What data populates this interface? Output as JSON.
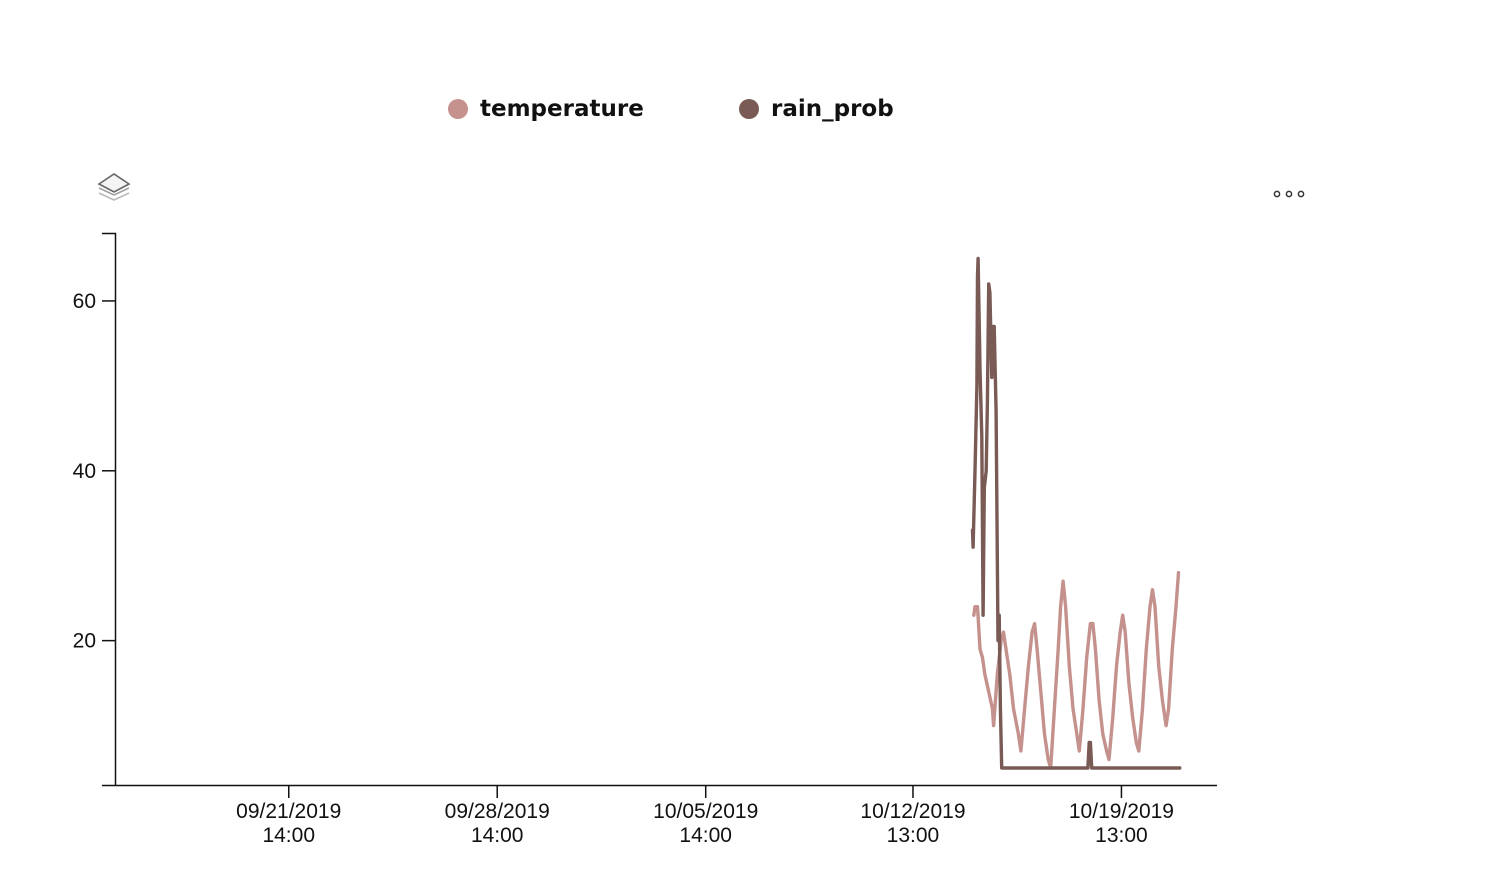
{
  "colors": {
    "temperature": "#c4918d",
    "rain_prob": "#7a5a55"
  },
  "toolbar": {
    "layers_icon": "layers-icon",
    "more_icon": "more-options-icon"
  },
  "chart_data": {
    "type": "line",
    "legend_position": "top",
    "grid": false,
    "title": "",
    "xlabel": "",
    "ylabel": "",
    "ylim": [
      3,
      68
    ],
    "xlim": [
      "2019-09-15T18:00",
      "2019-10-22T18:00"
    ],
    "x_ticks": [
      {
        "x": "2019-09-21T14:00",
        "date": "09/21/2019",
        "time": "14:00"
      },
      {
        "x": "2019-09-28T14:00",
        "date": "09/28/2019",
        "time": "14:00"
      },
      {
        "x": "2019-10-05T14:00",
        "date": "10/05/2019",
        "time": "14:00"
      },
      {
        "x": "2019-10-12T13:00",
        "date": "10/12/2019",
        "time": "13:00"
      },
      {
        "x": "2019-10-19T13:00",
        "date": "10/19/2019",
        "time": "13:00"
      }
    ],
    "y_ticks": [
      20,
      40,
      60
    ],
    "series": [
      {
        "name": "temperature",
        "points": [
          [
            "2019-10-14T14:00",
            23
          ],
          [
            "2019-10-14T15:00",
            24
          ],
          [
            "2019-10-14T17:00",
            24
          ],
          [
            "2019-10-14T19:00",
            19
          ],
          [
            "2019-10-14T21:00",
            18
          ],
          [
            "2019-10-14T23:00",
            16
          ],
          [
            "2019-10-15T02:00",
            14
          ],
          [
            "2019-10-15T05:00",
            12
          ],
          [
            "2019-10-15T06:00",
            10
          ],
          [
            "2019-10-15T09:00",
            16
          ],
          [
            "2019-10-15T12:00",
            20
          ],
          [
            "2019-10-15T14:00",
            21
          ],
          [
            "2019-10-15T16:00",
            19
          ],
          [
            "2019-10-15T19:00",
            16
          ],
          [
            "2019-10-15T22:00",
            12
          ],
          [
            "2019-10-16T02:00",
            9
          ],
          [
            "2019-10-16T04:00",
            7
          ],
          [
            "2019-10-16T07:00",
            12
          ],
          [
            "2019-10-16T10:00",
            17
          ],
          [
            "2019-10-16T13:00",
            21
          ],
          [
            "2019-10-16T15:00",
            22
          ],
          [
            "2019-10-16T17:00",
            19
          ],
          [
            "2019-10-16T20:00",
            14
          ],
          [
            "2019-10-16T23:00",
            9
          ],
          [
            "2019-10-17T02:00",
            6
          ],
          [
            "2019-10-17T04:00",
            5
          ],
          [
            "2019-10-17T07:00",
            12
          ],
          [
            "2019-10-17T10:00",
            19
          ],
          [
            "2019-10-17T12:00",
            24
          ],
          [
            "2019-10-17T14:00",
            27
          ],
          [
            "2019-10-17T16:00",
            24
          ],
          [
            "2019-10-17T19:00",
            17
          ],
          [
            "2019-10-17T22:00",
            12
          ],
          [
            "2019-10-18T01:00",
            9
          ],
          [
            "2019-10-18T03:00",
            7
          ],
          [
            "2019-10-18T06:00",
            12
          ],
          [
            "2019-10-18T09:00",
            18
          ],
          [
            "2019-10-18T12:00",
            22
          ],
          [
            "2019-10-18T14:00",
            22
          ],
          [
            "2019-10-18T16:00",
            19
          ],
          [
            "2019-10-18T19:00",
            13
          ],
          [
            "2019-10-18T22:00",
            9
          ],
          [
            "2019-10-19T01:00",
            7
          ],
          [
            "2019-10-19T03:00",
            6
          ],
          [
            "2019-10-19T06:00",
            11
          ],
          [
            "2019-10-19T09:00",
            17
          ],
          [
            "2019-10-19T12:00",
            21
          ],
          [
            "2019-10-19T14:00",
            23
          ],
          [
            "2019-10-19T16:00",
            21
          ],
          [
            "2019-10-19T19:00",
            15
          ],
          [
            "2019-10-19T22:00",
            11
          ],
          [
            "2019-10-20T01:00",
            8
          ],
          [
            "2019-10-20T03:00",
            7
          ],
          [
            "2019-10-20T06:00",
            12
          ],
          [
            "2019-10-20T09:00",
            19
          ],
          [
            "2019-10-20T12:00",
            24
          ],
          [
            "2019-10-20T14:00",
            26
          ],
          [
            "2019-10-20T16:00",
            24
          ],
          [
            "2019-10-20T19:00",
            17
          ],
          [
            "2019-10-20T22:00",
            13
          ],
          [
            "2019-10-21T01:00",
            10
          ],
          [
            "2019-10-21T03:00",
            12
          ],
          [
            "2019-10-21T06:00",
            19
          ],
          [
            "2019-10-21T09:00",
            24
          ],
          [
            "2019-10-21T11:00",
            28
          ]
        ]
      },
      {
        "name": "rain_prob",
        "points": [
          [
            "2019-10-14T13:00",
            33
          ],
          [
            "2019-10-14T13:30",
            31
          ],
          [
            "2019-10-14T15:00",
            40
          ],
          [
            "2019-10-14T16:30",
            50
          ],
          [
            "2019-10-14T17:00",
            63
          ],
          [
            "2019-10-14T17:30",
            65
          ],
          [
            "2019-10-14T19:00",
            52
          ],
          [
            "2019-10-14T20:30",
            44
          ],
          [
            "2019-10-14T21:30",
            23
          ],
          [
            "2019-10-14T22:30",
            38
          ],
          [
            "2019-10-15T00:00",
            40
          ],
          [
            "2019-10-15T01:00",
            48
          ],
          [
            "2019-10-15T02:00",
            62
          ],
          [
            "2019-10-15T03:00",
            61
          ],
          [
            "2019-10-15T04:30",
            51
          ],
          [
            "2019-10-15T05:30",
            57
          ],
          [
            "2019-10-15T06:30",
            57
          ],
          [
            "2019-10-15T08:00",
            47
          ],
          [
            "2019-10-15T09:30",
            20
          ],
          [
            "2019-10-15T10:30",
            23
          ],
          [
            "2019-10-15T11:30",
            12
          ],
          [
            "2019-10-15T12:30",
            5
          ],
          [
            "2019-10-16T00:00",
            5
          ],
          [
            "2019-10-18T10:00",
            5
          ],
          [
            "2019-10-18T11:00",
            8
          ],
          [
            "2019-10-18T12:00",
            8
          ],
          [
            "2019-10-18T13:00",
            5
          ],
          [
            "2019-10-21T12:00",
            5
          ]
        ]
      }
    ]
  }
}
